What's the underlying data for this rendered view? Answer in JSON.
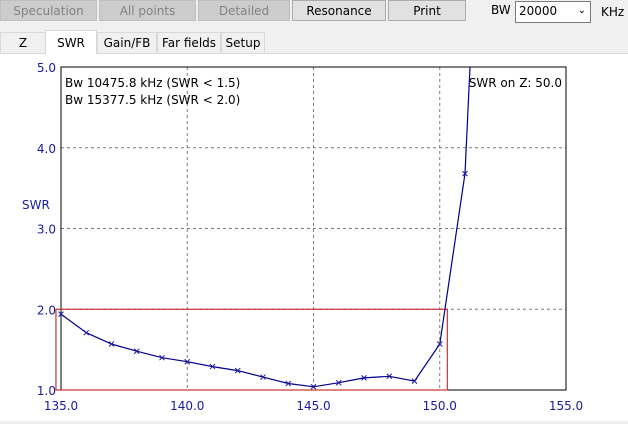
{
  "toolbar": {
    "buttons": [
      {
        "label": "Speculation",
        "enabled": false
      },
      {
        "label": "All points",
        "enabled": false
      },
      {
        "label": "Detailed",
        "enabled": false
      },
      {
        "label": "Resonance",
        "enabled": true
      },
      {
        "label": "Print",
        "enabled": true
      }
    ],
    "bw_label": "BW",
    "bw_value": "20000",
    "unit_label": "KHz"
  },
  "tabs": [
    {
      "label": "Z",
      "active": false
    },
    {
      "label": "SWR",
      "active": true
    },
    {
      "label": "Gain/FB",
      "active": false
    },
    {
      "label": "Far fields",
      "active": false
    },
    {
      "label": "Setup",
      "active": false
    }
  ],
  "colors": {
    "axis_text": "#1a1aa0",
    "curve": "#00008b",
    "marker": "#1a1aa0",
    "bandwidth_box": "#c83232",
    "grid": "#7a7a7a"
  },
  "chart_data": {
    "type": "line",
    "xlabel": "",
    "ylabel": "SWR",
    "xlim": [
      135.0,
      155.0
    ],
    "ylim": [
      1.0,
      5.0
    ],
    "x_ticks": [
      "135.0",
      "140.0",
      "145.0",
      "150.0",
      "155.0"
    ],
    "y_ticks": [
      "1.0",
      "2.0",
      "3.0",
      "4.0",
      "5.0"
    ],
    "grid": true,
    "annotations": [
      "Bw 10475.8 kHz (SWR < 1.5)",
      "Bw 15377.5 kHz (SWR < 2.0)",
      "SWR on Z: 50.0"
    ],
    "bandwidth_box": {
      "x_start": 134.8,
      "x_end": 150.3,
      "swr_limit": 2.0
    },
    "series": [
      {
        "x": [
          135,
          136,
          137,
          138,
          139,
          140,
          141,
          142,
          143,
          144,
          145,
          146,
          147,
          148,
          149,
          150,
          151,
          151.2
        ],
        "y": [
          1.94,
          1.71,
          1.57,
          1.48,
          1.4,
          1.35,
          1.29,
          1.24,
          1.16,
          1.08,
          1.04,
          1.09,
          1.15,
          1.17,
          1.11,
          1.57,
          3.68,
          5.0
        ]
      }
    ],
    "markers_x": [
      135,
      136,
      137,
      138,
      139,
      140,
      141,
      142,
      143,
      144,
      145,
      146,
      147,
      148,
      149,
      150,
      151
    ]
  }
}
